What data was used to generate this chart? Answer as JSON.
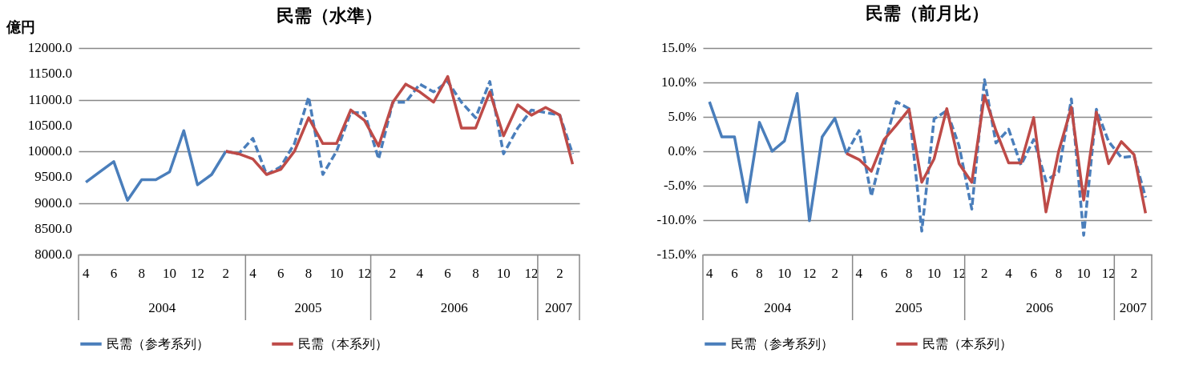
{
  "chart_data": [
    {
      "type": "line",
      "title": "民需（水準）",
      "ylabel": "億円",
      "x": [
        "2004-04",
        "2004-05",
        "2004-06",
        "2004-07",
        "2004-08",
        "2004-09",
        "2004-10",
        "2004-11",
        "2004-12",
        "2005-01",
        "2005-02",
        "2005-03",
        "2005-04",
        "2005-05",
        "2005-06",
        "2005-07",
        "2005-08",
        "2005-09",
        "2005-10",
        "2005-11",
        "2005-12",
        "2006-01",
        "2006-02",
        "2006-03",
        "2006-04",
        "2006-05",
        "2006-06",
        "2006-07",
        "2006-08",
        "2006-09",
        "2006-10",
        "2006-11",
        "2006-12",
        "2007-01",
        "2007-02",
        "2007-03"
      ],
      "xlim": [
        "2004-03-16",
        "2007-03-16"
      ],
      "xticks": [
        {
          "value": "2004-04",
          "label": "4"
        },
        {
          "value": "2004-06",
          "label": "6"
        },
        {
          "value": "2004-08",
          "label": "8"
        },
        {
          "value": "2004-10",
          "label": "10"
        },
        {
          "value": "2004-12",
          "label": "12"
        },
        {
          "value": "2005-02",
          "label": "2"
        },
        {
          "value": "2005-04",
          "label": "4"
        },
        {
          "value": "2005-06",
          "label": "6"
        },
        {
          "value": "2005-08",
          "label": "8"
        },
        {
          "value": "2005-10",
          "label": "10"
        },
        {
          "value": "2005-12",
          "label": "12"
        },
        {
          "value": "2006-02",
          "label": "2"
        },
        {
          "value": "2006-04",
          "label": "4"
        },
        {
          "value": "2006-06",
          "label": "6"
        },
        {
          "value": "2006-08",
          "label": "8"
        },
        {
          "value": "2006-10",
          "label": "10"
        },
        {
          "value": "2006-12",
          "label": "12"
        },
        {
          "value": "2007-02",
          "label": "2"
        }
      ],
      "ylim": [
        8000,
        12000
      ],
      "yticks": [
        {
          "value": 8000,
          "label": "8000.0"
        },
        {
          "value": 8500,
          "label": "8500.0"
        },
        {
          "value": 9000,
          "label": "9000.0"
        },
        {
          "value": 9500,
          "label": "9500.0"
        },
        {
          "value": 10000,
          "label": "10000.0"
        },
        {
          "value": 10500,
          "label": "10500.0"
        },
        {
          "value": 11000,
          "label": "11000.0"
        },
        {
          "value": 11500,
          "label": "11500.0"
        },
        {
          "value": 12000,
          "label": "12000.0"
        }
      ],
      "grid": "y",
      "legend": "bottom",
      "annotations": [
        "2004",
        "2005",
        "2006",
        "2007"
      ],
      "series": [
        {
          "name": "民需（参考系列）",
          "color": "#4a7ebb",
          "values": [
            9400,
            9600,
            9800,
            9050,
            9450,
            9450,
            9600,
            10400,
            9350,
            9550,
            10000,
            null,
            null,
            null,
            null,
            null,
            null,
            null,
            null,
            null,
            null,
            null,
            null,
            null,
            null,
            null,
            null,
            null,
            null,
            null,
            null,
            null,
            null,
            null,
            null,
            null
          ]
        },
        {
          "color": "#4a7ebb",
          "line_style": "dashed",
          "values": [
            null,
            null,
            null,
            null,
            null,
            null,
            null,
            null,
            null,
            null,
            10000,
            9950,
            10250,
            9550,
            9700,
            10150,
            11050,
            9550,
            10000,
            10750,
            10750,
            9850,
            10950,
            10950,
            11300,
            11150,
            11350,
            10950,
            10650,
            11350,
            9950,
            10450,
            10800,
            10750,
            10700,
            9950
          ]
        },
        {
          "name": "民需（本系列）",
          "color": "#be4b48",
          "values": [
            null,
            null,
            null,
            null,
            null,
            null,
            null,
            null,
            null,
            null,
            10000,
            9950,
            9850,
            9550,
            9650,
            10000,
            10650,
            10150,
            10150,
            10800,
            10600,
            10100,
            10950,
            11300,
            11150,
            10950,
            11450,
            10450,
            10450,
            11150,
            10300,
            10900,
            10700,
            10850,
            10700,
            9750
          ]
        }
      ]
    },
    {
      "type": "line",
      "title": "民需（前月比）",
      "x": [
        "2004-04",
        "2004-05",
        "2004-06",
        "2004-07",
        "2004-08",
        "2004-09",
        "2004-10",
        "2004-11",
        "2004-12",
        "2005-01",
        "2005-02",
        "2005-03",
        "2005-04",
        "2005-05",
        "2005-06",
        "2005-07",
        "2005-08",
        "2005-09",
        "2005-10",
        "2005-11",
        "2005-12",
        "2006-01",
        "2006-02",
        "2006-03",
        "2006-04",
        "2006-05",
        "2006-06",
        "2006-07",
        "2006-08",
        "2006-09",
        "2006-10",
        "2006-11",
        "2006-12",
        "2007-01",
        "2007-02",
        "2007-03"
      ],
      "xlim": [
        "2004-03-16",
        "2007-03-16"
      ],
      "xticks": [
        {
          "value": "2004-04",
          "label": "4"
        },
        {
          "value": "2004-06",
          "label": "6"
        },
        {
          "value": "2004-08",
          "label": "8"
        },
        {
          "value": "2004-10",
          "label": "10"
        },
        {
          "value": "2004-12",
          "label": "12"
        },
        {
          "value": "2005-02",
          "label": "2"
        },
        {
          "value": "2005-04",
          "label": "4"
        },
        {
          "value": "2005-06",
          "label": "6"
        },
        {
          "value": "2005-08",
          "label": "8"
        },
        {
          "value": "2005-10",
          "label": "10"
        },
        {
          "value": "2005-12",
          "label": "12"
        },
        {
          "value": "2006-02",
          "label": "2"
        },
        {
          "value": "2006-04",
          "label": "4"
        },
        {
          "value": "2006-06",
          "label": "6"
        },
        {
          "value": "2006-08",
          "label": "8"
        },
        {
          "value": "2006-10",
          "label": "10"
        },
        {
          "value": "2006-12",
          "label": "12"
        },
        {
          "value": "2007-02",
          "label": "2"
        }
      ],
      "ylim": [
        -15,
        15
      ],
      "yticks": [
        {
          "value": -15,
          "label": "-15.0%"
        },
        {
          "value": -10,
          "label": "-10.0%"
        },
        {
          "value": -5,
          "label": "-5.0%"
        },
        {
          "value": 0,
          "label": "0.0%"
        },
        {
          "value": 5,
          "label": "5.0%"
        },
        {
          "value": 10,
          "label": "10.0%"
        },
        {
          "value": 15,
          "label": "15.0%"
        }
      ],
      "grid": "y",
      "legend": "bottom",
      "annotations": [
        "2004",
        "2005",
        "2006",
        "2007"
      ],
      "series": [
        {
          "name": "民需（参考系列）",
          "color": "#4a7ebb",
          "values": [
            7.2,
            2.1,
            2.1,
            -7.4,
            4.2,
            0.0,
            1.5,
            8.4,
            -10.1,
            2.1,
            4.8,
            -0.3,
            null,
            null,
            null,
            null,
            null,
            null,
            null,
            null,
            null,
            null,
            null,
            null,
            null,
            null,
            null,
            null,
            null,
            null,
            null,
            null,
            null,
            null,
            null,
            null
          ]
        },
        {
          "color": "#4a7ebb",
          "line_style": "dashed",
          "values": [
            null,
            null,
            null,
            null,
            null,
            null,
            null,
            null,
            null,
            null,
            null,
            -0.3,
            3.0,
            -6.5,
            0.8,
            7.2,
            6.2,
            -11.6,
            4.7,
            5.9,
            0.8,
            -8.4,
            10.4,
            1.2,
            3.2,
            -2.0,
            1.7,
            -4.3,
            -3.0,
            7.6,
            -12.2,
            6.1,
            1.4,
            -0.9,
            -0.7,
            -6.7
          ]
        },
        {
          "name": "民需（本系列）",
          "color": "#be4b48",
          "values": [
            null,
            null,
            null,
            null,
            null,
            null,
            null,
            null,
            null,
            null,
            null,
            -0.3,
            -1.2,
            -2.9,
            1.7,
            3.8,
            6.1,
            -4.5,
            -1.1,
            6.2,
            -1.8,
            -4.5,
            8.1,
            3.0,
            -1.7,
            -1.7,
            4.9,
            -8.8,
            0.0,
            6.4,
            -7.1,
            5.7,
            -1.8,
            1.4,
            -0.5,
            -9.0
          ]
        }
      ]
    }
  ]
}
